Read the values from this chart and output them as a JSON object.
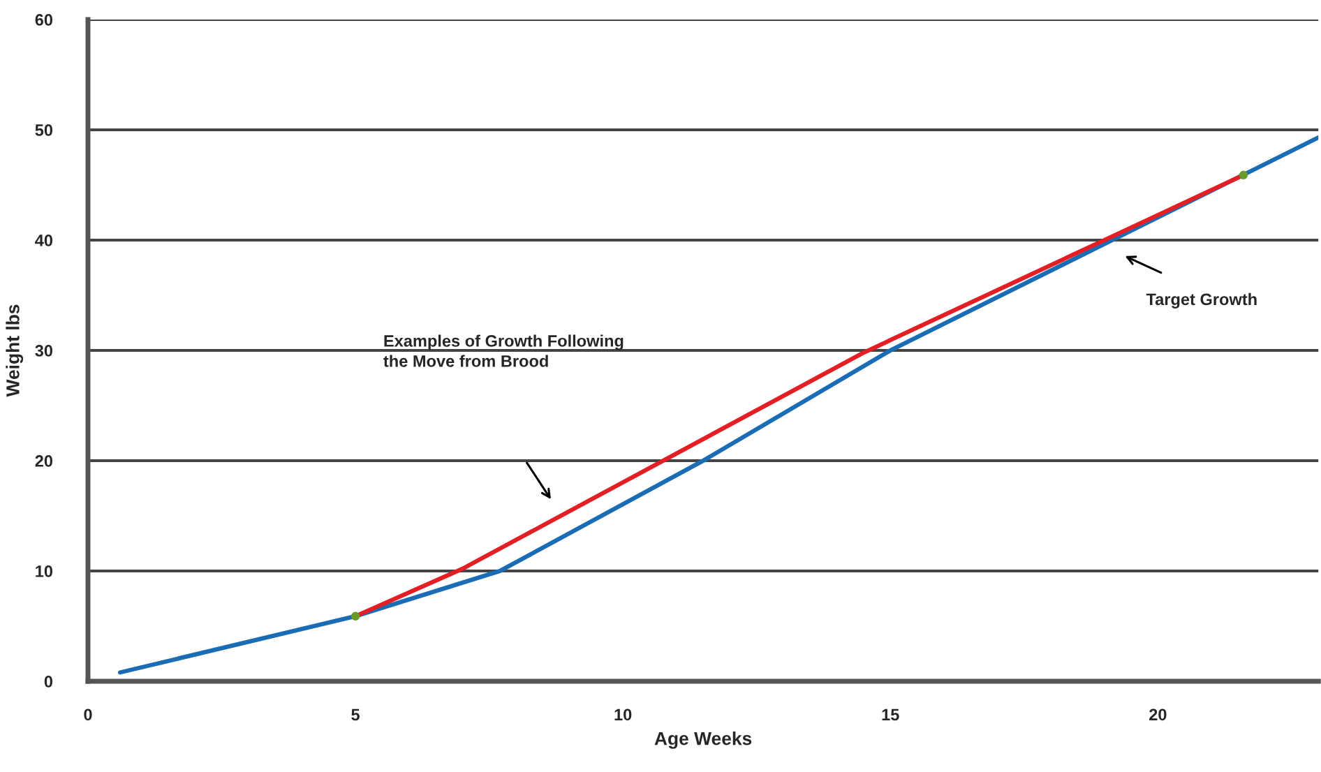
{
  "chart_data": {
    "type": "line",
    "xlabel": "Age Weeks",
    "ylabel": "Weight lbs",
    "xlim": [
      0,
      23
    ],
    "xticks": [
      0,
      5,
      10,
      15,
      20
    ],
    "ylim": [
      0,
      60
    ],
    "yticks": [
      0,
      10,
      20,
      30,
      40,
      50,
      60
    ],
    "grid": "y",
    "line_style": "solid",
    "series": [
      {
        "color": "#1a6db5",
        "x": [
          0.6,
          5,
          7.7,
          11.5,
          15,
          23
        ],
        "values": [
          0.8,
          5.9,
          10,
          20,
          30,
          49.3
        ]
      },
      {
        "color": "#e31e24",
        "x": [
          5,
          7,
          14.5,
          19,
          21.6
        ],
        "values": [
          5.9,
          10.2,
          29.8,
          40,
          45.9
        ]
      },
      {
        "type": "scatter",
        "marker": "circle",
        "color": "#6a9a2a",
        "x": [
          5,
          21.6
        ],
        "values": [
          5.9,
          45.9
        ]
      }
    ],
    "annotations": [
      "Examples of Growth Following\nthe Move from Brood",
      "Target Growth"
    ]
  }
}
